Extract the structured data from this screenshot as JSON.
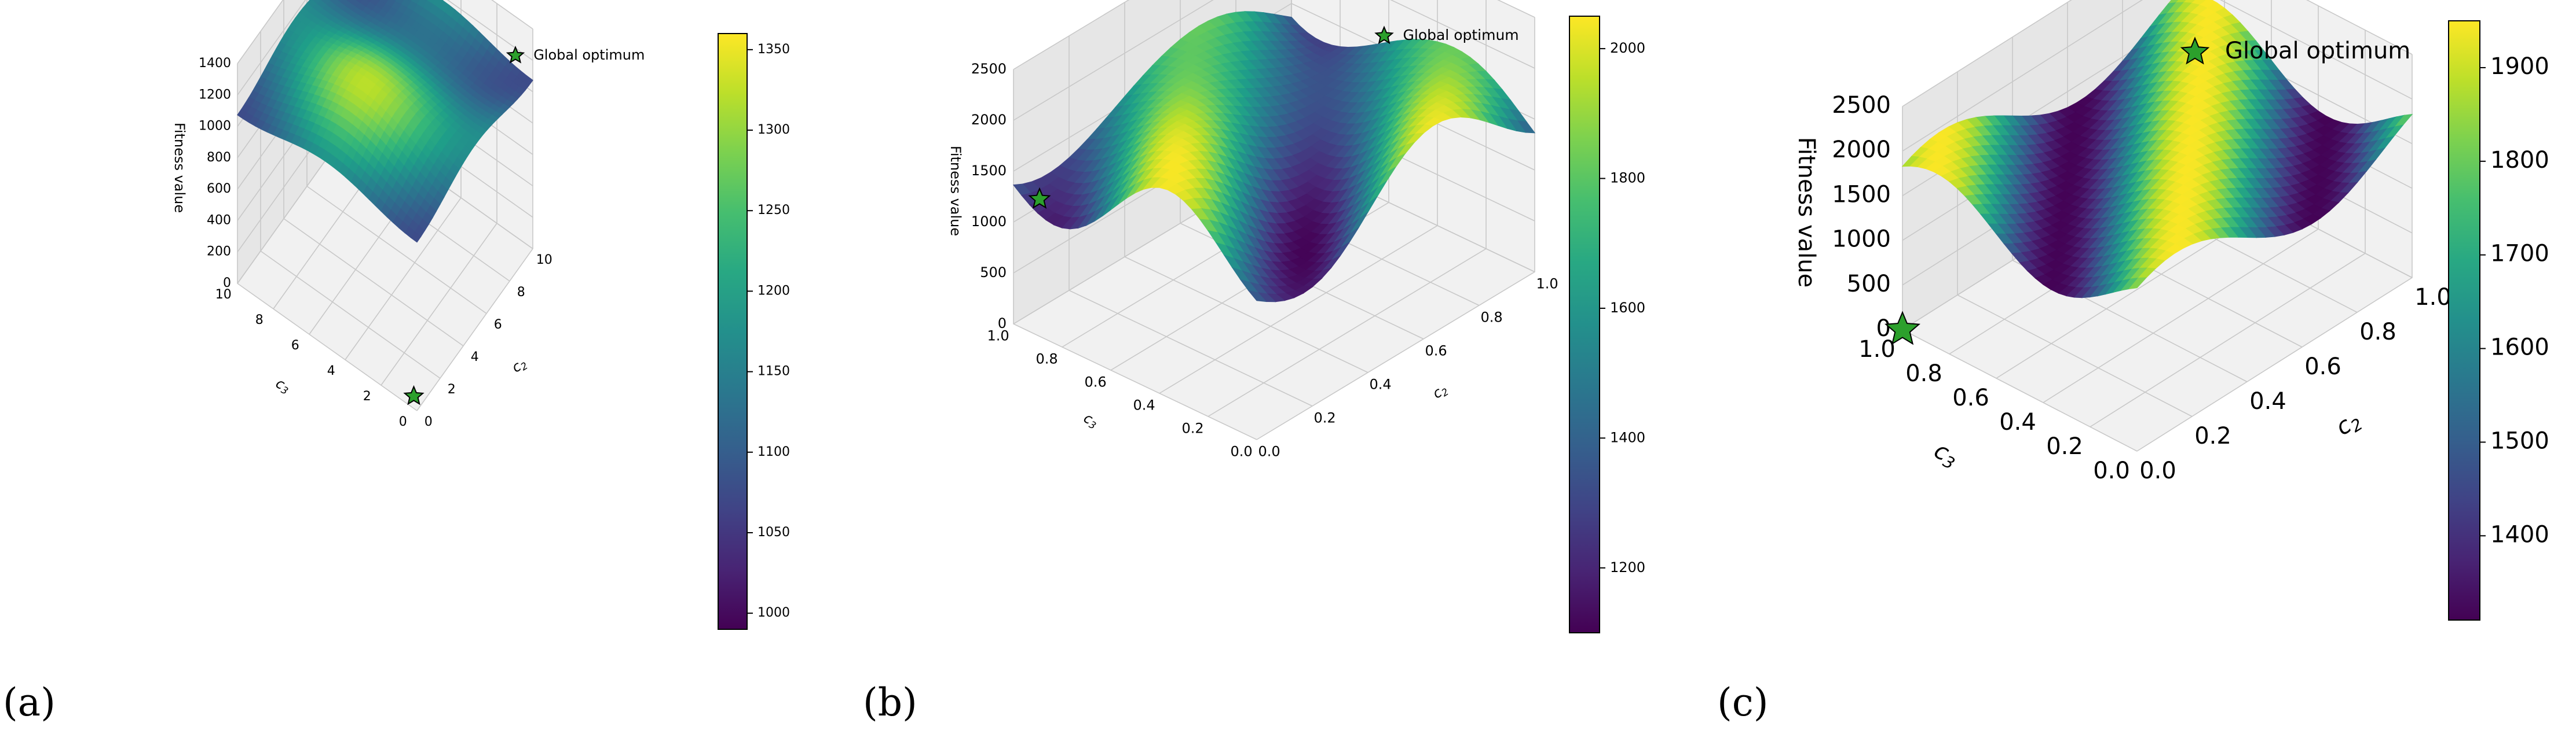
{
  "colors": {
    "pane": "#f1f1f1",
    "pane_wall": "#e6e6e6",
    "grid": "#c8c8c8",
    "star_fill": "#2ca02c",
    "star_edge": "#000000",
    "colormap": "viridis"
  },
  "chart_data": [
    {
      "type": "surface3d",
      "panel_label": "(a)",
      "xlabel": "c2",
      "ylabel": "c3",
      "zlabel": "Fitness value",
      "xlim": [
        0,
        10
      ],
      "ylim": [
        0,
        10
      ],
      "zlim": [
        0,
        1400
      ],
      "x_ticks": [
        "0",
        "2",
        "4",
        "6",
        "8",
        "10"
      ],
      "y_ticks": [
        "0",
        "2",
        "4",
        "6",
        "8",
        "10"
      ],
      "z_ticks": [
        "0",
        "200",
        "400",
        "600",
        "800",
        "1000",
        "1200",
        "1400"
      ],
      "surface_range": [
        990,
        1360
      ],
      "colorbar": {
        "min": 990,
        "max": 1360,
        "ticks": [
          "1000",
          "1050",
          "1100",
          "1150",
          "1200",
          "1250",
          "1300",
          "1350"
        ]
      },
      "marker": {
        "label": "Global optimum",
        "x": 0.5,
        "y": 0.5,
        "z": 0
      },
      "legend": "top-right",
      "grid": true
    },
    {
      "type": "surface3d",
      "panel_label": "(b)",
      "xlabel": "c2",
      "ylabel": "c3",
      "zlabel": "Fitness value",
      "xlim": [
        0,
        1
      ],
      "ylim": [
        0,
        1
      ],
      "zlim": [
        0,
        2500
      ],
      "x_ticks": [
        "0.0",
        "0.2",
        "0.4",
        "0.6",
        "0.8",
        "1.0"
      ],
      "y_ticks": [
        "0.0",
        "0.2",
        "0.4",
        "0.6",
        "0.8",
        "1.0"
      ],
      "z_ticks": [
        "0",
        "500",
        "1000",
        "1500",
        "2000",
        "2500"
      ],
      "surface_range": [
        1100,
        2050
      ],
      "colorbar": {
        "min": 1100,
        "max": 2050,
        "ticks": [
          "1200",
          "1400",
          "1600",
          "1800",
          "2000"
        ]
      },
      "marker": {
        "label": "Global optimum",
        "x": 0.05,
        "y": 0.95,
        "z": 1200
      },
      "legend": "top-right",
      "grid": true
    },
    {
      "type": "surface3d",
      "panel_label": "(c)",
      "xlabel": "c2",
      "ylabel": "c3",
      "zlabel": "Fitness value",
      "xlim": [
        0,
        1
      ],
      "ylim": [
        0,
        1
      ],
      "zlim": [
        0,
        2500
      ],
      "x_ticks": [
        "0.0",
        "0.2",
        "0.4",
        "0.6",
        "0.8",
        "1.0"
      ],
      "y_ticks": [
        "0.0",
        "0.2",
        "0.4",
        "0.6",
        "0.8",
        "1.0"
      ],
      "z_ticks": [
        "0",
        "500",
        "1000",
        "1500",
        "2000",
        "2500"
      ],
      "surface_range": [
        1310,
        1950
      ],
      "colorbar": {
        "min": 1310,
        "max": 1950,
        "ticks": [
          "1400",
          "1500",
          "1600",
          "1700",
          "1800",
          "1900"
        ]
      },
      "marker": {
        "label": "Global optimum",
        "x": 0.0,
        "y": 1.0,
        "z": 0
      },
      "legend": "top-right",
      "grid": true
    }
  ]
}
